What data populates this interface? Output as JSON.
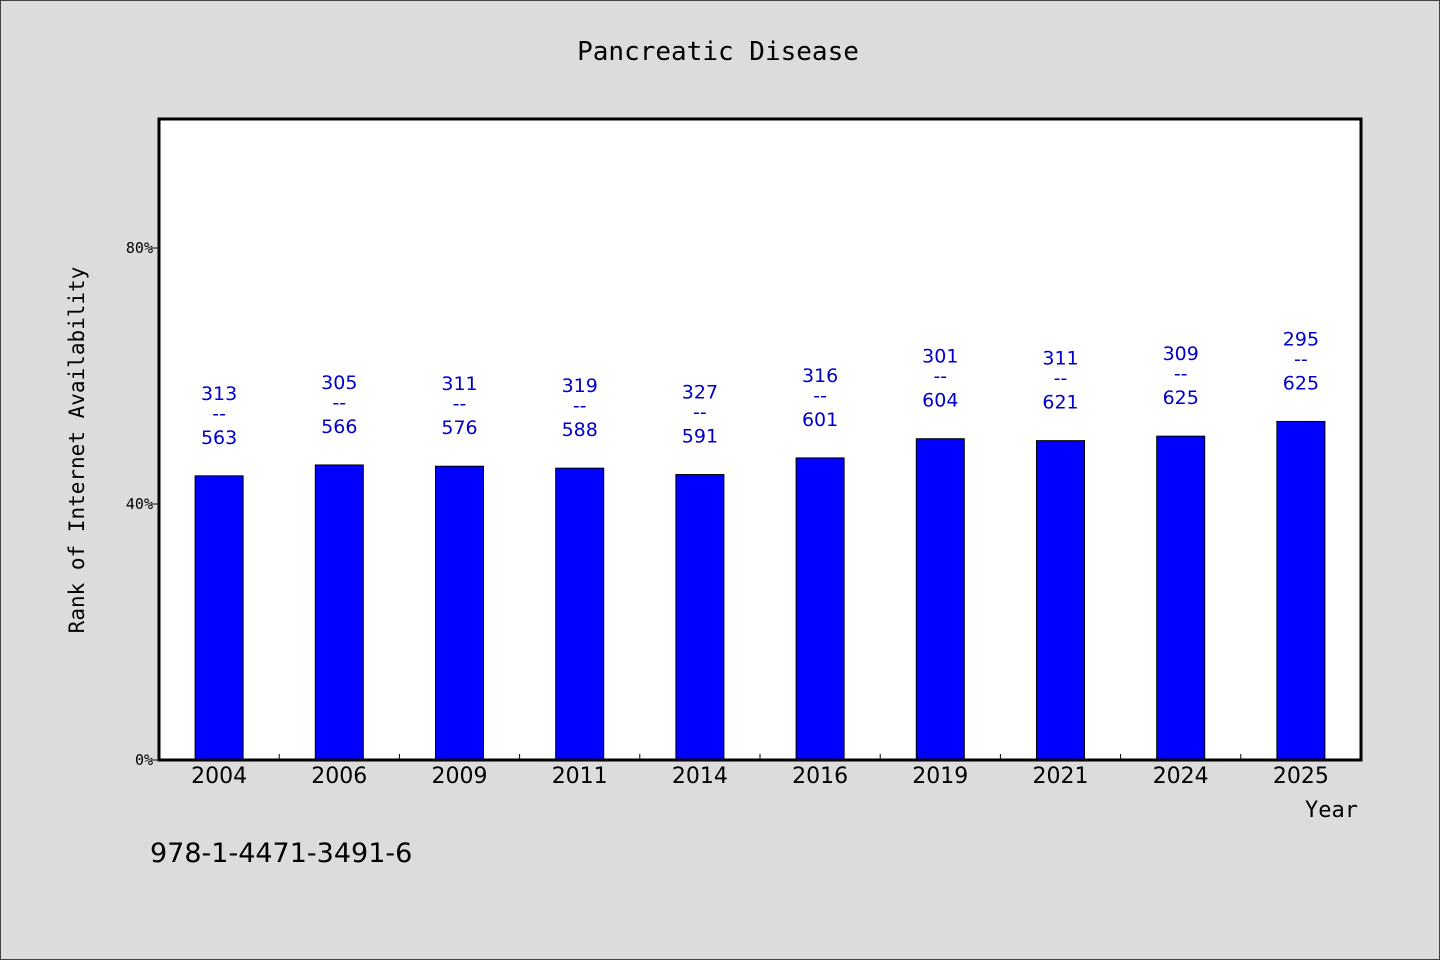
{
  "chart_data": {
    "type": "bar",
    "title": "Pancreatic Disease",
    "xlabel": "Year",
    "ylabel": "Rank of Internet Availability",
    "categories": [
      "2004",
      "2006",
      "2009",
      "2011",
      "2014",
      "2016",
      "2019",
      "2021",
      "2024",
      "2025"
    ],
    "values": [
      44.4,
      46.1,
      45.9,
      45.6,
      44.6,
      47.2,
      50.2,
      49.9,
      50.6,
      52.9
    ],
    "value_labels": [
      {
        "top": "313",
        "sep": "--",
        "bottom": "563"
      },
      {
        "top": "305",
        "sep": "--",
        "bottom": "566"
      },
      {
        "top": "311",
        "sep": "--",
        "bottom": "576"
      },
      {
        "top": "319",
        "sep": "--",
        "bottom": "588"
      },
      {
        "top": "327",
        "sep": "--",
        "bottom": "591"
      },
      {
        "top": "316",
        "sep": "--",
        "bottom": "601"
      },
      {
        "top": "301",
        "sep": "--",
        "bottom": "604"
      },
      {
        "top": "311",
        "sep": "--",
        "bottom": "621"
      },
      {
        "top": "309",
        "sep": "--",
        "bottom": "625"
      },
      {
        "top": "295",
        "sep": "--",
        "bottom": "625"
      }
    ],
    "ylim": [
      0,
      100
    ],
    "yticks": [
      0,
      40,
      80
    ],
    "ytick_labels": [
      "0%",
      "40%",
      "80%"
    ],
    "grid": false,
    "legend": "none",
    "colors": {
      "bar": "#0000ff",
      "label": "#0000cc",
      "background": "#dcdcdc",
      "plot_area": "#ffffff"
    }
  },
  "footer": {
    "identifier": "978-1-4471-3491-6"
  }
}
